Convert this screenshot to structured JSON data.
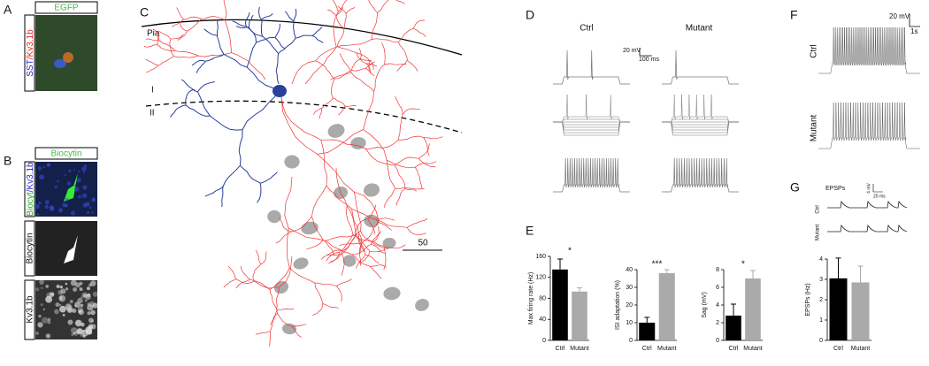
{
  "panels": {
    "A": {
      "letter": "A",
      "header": "EGFP",
      "side_label": [
        "SST",
        "/Kv3.1b"
      ]
    },
    "B": {
      "letter": "B",
      "header": "Biocytin",
      "side_labels": [
        [
          "Biocyt",
          "/Kv3.1b"
        ],
        [
          "Biocytin"
        ],
        [
          "Kv3.1b"
        ]
      ]
    },
    "C": {
      "letter": "C",
      "pia": "Pia",
      "layer_1": "I",
      "layer_2": "II",
      "scale": "50"
    },
    "D": {
      "letter": "D",
      "columns": [
        "Ctrl",
        "Mutant"
      ],
      "scale_v": "20 mV",
      "scale_t": "100 ms"
    },
    "E": {
      "letter": "E"
    },
    "F": {
      "letter": "F",
      "rows": [
        "Ctrl",
        "Mutant"
      ],
      "scale_v": "20 mV",
      "scale_t": "1s"
    },
    "G": {
      "letter": "G",
      "title": "EPSPs",
      "rows": [
        "Ctrl",
        "Mutant"
      ],
      "scale_v": "4 mV",
      "scale_t": "20 ms"
    }
  },
  "chart_data": [
    {
      "type": "bar",
      "ylabel": "Max firing rate (Hz)",
      "categories": [
        "Ctrl",
        "Mutant"
      ],
      "values": [
        135,
        93
      ],
      "errors": [
        20,
        7
      ],
      "colors": [
        "#000000",
        "#aaaaaa"
      ],
      "ylim": [
        0,
        160
      ],
      "yticks": [
        0,
        40,
        80,
        120,
        160
      ],
      "significance": "*"
    },
    {
      "type": "bar",
      "ylabel": "ISI adaptation (%)",
      "categories": [
        "Ctrl",
        "Mutant"
      ],
      "values": [
        10,
        38
      ],
      "errors": [
        3,
        2
      ],
      "colors": [
        "#000000",
        "#aaaaaa"
      ],
      "ylim": [
        0,
        40
      ],
      "yticks": [
        0,
        10,
        20,
        30,
        40
      ],
      "significance": "***"
    },
    {
      "type": "bar",
      "ylabel": "Sag (mV)",
      "categories": [
        "Ctrl",
        "Mutant"
      ],
      "values": [
        2.8,
        7.0
      ],
      "errors": [
        1.3,
        0.9
      ],
      "colors": [
        "#000000",
        "#aaaaaa"
      ],
      "ylim": [
        0,
        8
      ],
      "yticks": [
        0,
        2,
        4,
        6,
        8
      ],
      "significance": "*"
    },
    {
      "type": "bar",
      "ylabel": "EPSPs (Hz)",
      "categories": [
        "Ctrl",
        "Mutant"
      ],
      "values": [
        3.05,
        2.85
      ],
      "errors": [
        1.0,
        0.8
      ],
      "colors": [
        "#000000",
        "#aaaaaa"
      ],
      "ylim": [
        0,
        4
      ],
      "yticks": [
        0,
        1,
        2,
        3,
        4
      ]
    }
  ]
}
